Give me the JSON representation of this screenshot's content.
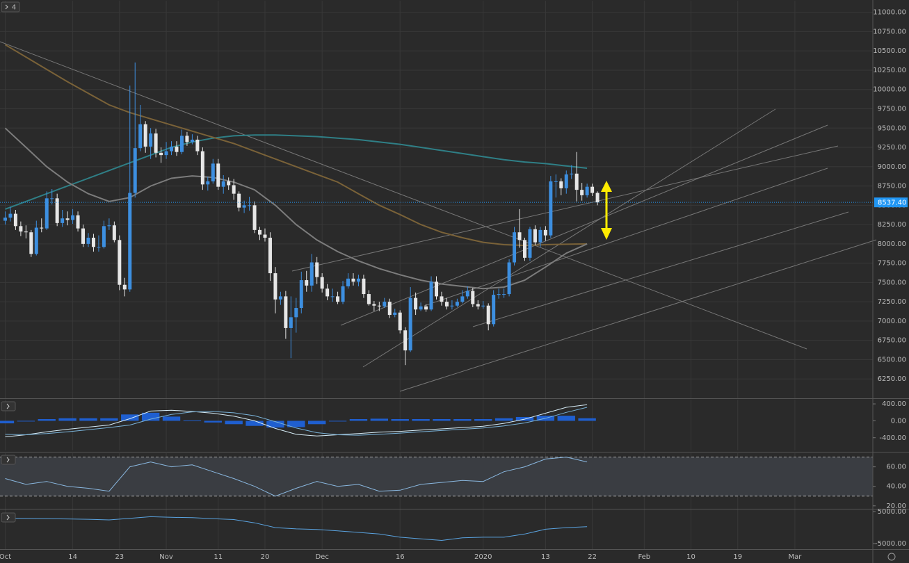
{
  "pane_label": "4",
  "chart_data": [
    {
      "type": "candlestick",
      "x": [
        0,
        1,
        2,
        3,
        4,
        5,
        6,
        7,
        8,
        9,
        10,
        11,
        12,
        13,
        14,
        15,
        16,
        17,
        18,
        19,
        20,
        21,
        22,
        23,
        24,
        25,
        26,
        27,
        28,
        29,
        30,
        31,
        32,
        33,
        34,
        35,
        36,
        37,
        38,
        39,
        40,
        41,
        42,
        43,
        44,
        45,
        46,
        47,
        48,
        49,
        50,
        51,
        52,
        53,
        54,
        55,
        56,
        57,
        58,
        59,
        60,
        61,
        62,
        63,
        64,
        65,
        66,
        67,
        68,
        69,
        70,
        71,
        72,
        73,
        74,
        75,
        76,
        77,
        78,
        79,
        80,
        81,
        82,
        83,
        84,
        85,
        86,
        87,
        88,
        89,
        90,
        91,
        92,
        93,
        94,
        95,
        96,
        97,
        98,
        99,
        100,
        101,
        102,
        103,
        104,
        105,
        106,
        107,
        108,
        109,
        110,
        111,
        112,
        113,
        114
      ],
      "opens": [
        8300,
        8340,
        8390,
        8230,
        8160,
        8150,
        7870,
        8210,
        8200,
        8590,
        8590,
        8270,
        8330,
        8310,
        8370,
        8200,
        8000,
        8080,
        7960,
        7960,
        8230,
        8240,
        8050,
        7470,
        7410,
        8660,
        9240,
        9550,
        9260,
        9430,
        9180,
        9150,
        9200,
        9260,
        9190,
        9400,
        9320,
        9350,
        9200,
        8770,
        8810,
        9040,
        8740,
        8810,
        8760,
        8650,
        8470,
        8500,
        8500,
        8180,
        8120,
        8080,
        7620,
        7280,
        7320,
        6910,
        7050,
        7170,
        7530,
        7460,
        7760,
        7570,
        7420,
        7320,
        7320,
        7250,
        7450,
        7550,
        7510,
        7550,
        7350,
        7220,
        7200,
        7190,
        7250,
        7080,
        7110,
        6880,
        6620,
        7300,
        7150,
        7190,
        7150,
        7510,
        7320,
        7250,
        7190,
        7200,
        7250,
        7320,
        7390,
        7220,
        7190,
        7200,
        6960,
        7340,
        7350,
        7350,
        7760,
        8150,
        8050,
        7820,
        8190,
        8020,
        8180,
        8110,
        8810,
        8810,
        8720,
        8900,
        8910,
        8700,
        8630,
        8740,
        8660
      ],
      "highs": [
        8420,
        8480,
        8440,
        8290,
        8240,
        8180,
        8300,
        8330,
        8680,
        8710,
        8650,
        8440,
        8420,
        8450,
        8420,
        8250,
        8140,
        8130,
        8110,
        8300,
        8330,
        8290,
        8110,
        7560,
        10050,
        10350,
        9800,
        9590,
        9500,
        9490,
        9250,
        9320,
        9330,
        9330,
        9480,
        9450,
        9420,
        9400,
        9250,
        8870,
        9100,
        9100,
        8890,
        8860,
        8840,
        8680,
        8560,
        8610,
        8550,
        8220,
        8200,
        8150,
        7700,
        7380,
        7390,
        7320,
        7300,
        7640,
        7650,
        7870,
        7830,
        7620,
        7480,
        7420,
        7380,
        7520,
        7620,
        7620,
        7600,
        7600,
        7400,
        7260,
        7250,
        7300,
        7290,
        7160,
        7140,
        6920,
        7440,
        7370,
        7240,
        7220,
        7580,
        7580,
        7380,
        7300,
        7270,
        7290,
        7400,
        7450,
        7430,
        7270,
        7260,
        7230,
        7400,
        7420,
        7420,
        7800,
        8220,
        8450,
        8080,
        8220,
        8240,
        8220,
        8230,
        8880,
        8900,
        8850,
        8950,
        9020,
        9190,
        8790,
        8780,
        8780,
        8680
      ],
      "lows": [
        8250,
        8290,
        8180,
        8100,
        8070,
        7830,
        7850,
        8150,
        8180,
        8510,
        8230,
        8220,
        8240,
        8260,
        8160,
        7960,
        7960,
        7900,
        7900,
        7940,
        8180,
        8020,
        7400,
        7320,
        7380,
        8600,
        9200,
        9180,
        9100,
        9120,
        9050,
        9100,
        9150,
        9140,
        9160,
        9270,
        9290,
        9150,
        8700,
        8690,
        8780,
        8700,
        8650,
        8700,
        8570,
        8420,
        8400,
        8430,
        8140,
        8050,
        8030,
        7520,
        7100,
        7210,
        6770,
        6520,
        6850,
        7100,
        7380,
        7380,
        7480,
        7370,
        7270,
        7250,
        7220,
        7220,
        7420,
        7460,
        7450,
        7300,
        7200,
        7130,
        7130,
        7170,
        7040,
        7050,
        6840,
        6430,
        6600,
        7080,
        7130,
        7120,
        7130,
        7280,
        7200,
        7150,
        7150,
        7180,
        7230,
        7290,
        7180,
        7150,
        7160,
        6880,
        6930,
        7290,
        7300,
        7320,
        7720,
        7950,
        7780,
        7780,
        7980,
        7960,
        8040,
        8080,
        8600,
        8630,
        8650,
        8840,
        8550,
        8560,
        8600,
        8620,
        8500
      ],
      "closes": [
        8340,
        8390,
        8230,
        8160,
        8150,
        7870,
        8210,
        8200,
        8590,
        8590,
        8270,
        8330,
        8310,
        8370,
        8200,
        8000,
        8080,
        7960,
        7960,
        8230,
        8240,
        8050,
        7470,
        7410,
        8660,
        9240,
        9550,
        9260,
        9430,
        9180,
        9150,
        9200,
        9260,
        9190,
        9400,
        9320,
        9350,
        9200,
        8770,
        8810,
        9040,
        8740,
        8810,
        8760,
        8650,
        8470,
        8500,
        8500,
        8180,
        8120,
        8080,
        7620,
        7280,
        7320,
        6910,
        7050,
        7170,
        7530,
        7460,
        7760,
        7570,
        7420,
        7320,
        7320,
        7250,
        7450,
        7550,
        7510,
        7550,
        7350,
        7220,
        7200,
        7190,
        7250,
        7080,
        7110,
        6880,
        6620,
        7300,
        7150,
        7190,
        7150,
        7510,
        7320,
        7250,
        7190,
        7200,
        7250,
        7320,
        7390,
        7220,
        7190,
        7200,
        6960,
        7340,
        7350,
        7350,
        7760,
        8150,
        8050,
        7820,
        8190,
        8020,
        8180,
        8110,
        8810,
        8810,
        8720,
        8900,
        8910,
        8700,
        8630,
        8740,
        8660,
        8537.4
      ],
      "up_color": "#3d8fe0",
      "down_color": "#e6e6e6",
      "overlays": {
        "x": [
          0,
          4,
          8,
          12,
          16,
          20,
          24,
          28,
          32,
          36,
          40,
          44,
          48,
          52,
          56,
          60,
          64,
          68,
          72,
          76,
          80,
          84,
          88,
          92,
          96,
          100,
          104,
          108,
          112
        ],
        "series": [
          {
            "color": "#2f7f86",
            "values": [
              8450,
              8550,
              8650,
              8750,
              8850,
              8950,
              9050,
              9150,
              9250,
              9320,
              9370,
              9400,
              9410,
              9410,
              9400,
              9390,
              9370,
              9350,
              9320,
              9290,
              9250,
              9210,
              9170,
              9130,
              9090,
              9060,
              9040,
              9010,
              8980
            ]
          },
          {
            "color": "#7a6238",
            "values": [
              10580,
              10420,
              10260,
              10100,
              9950,
              9800,
              9700,
              9620,
              9540,
              9460,
              9380,
              9300,
              9200,
              9100,
              9000,
              8900,
              8800,
              8650,
              8500,
              8380,
              8250,
              8150,
              8080,
              8020,
              7990,
              7980,
              7990,
              7995,
              8000
            ]
          },
          {
            "color": "#7c7c7c",
            "values": [
              9500,
              9250,
              9000,
              8800,
              8650,
              8550,
              8600,
              8750,
              8850,
              8880,
              8860,
              8800,
              8700,
              8500,
              8250,
              8050,
              7900,
              7780,
              7680,
              7600,
              7530,
              7480,
              7450,
              7420,
              7440,
              7530,
              7700,
              7880,
              8000
            ]
          }
        ]
      },
      "last_price": {
        "value": 8537.4,
        "label": "8537.40"
      },
      "xlim": [
        -1,
        167
      ],
      "xticks": [
        {
          "value": 0,
          "label": "Oct"
        },
        {
          "value": 13,
          "label": "14"
        },
        {
          "value": 22,
          "label": "23"
        },
        {
          "value": 31,
          "label": "Nov"
        },
        {
          "value": 41,
          "label": "11"
        },
        {
          "value": 50,
          "label": "20"
        },
        {
          "value": 61,
          "label": "Dec"
        },
        {
          "value": 76,
          "label": "16"
        },
        {
          "value": 92,
          "label": "2020"
        },
        {
          "value": 104,
          "label": "13"
        },
        {
          "value": 113,
          "label": "22"
        },
        {
          "value": 123,
          "label": "Feb"
        },
        {
          "value": 132,
          "label": "10"
        },
        {
          "value": 141,
          "label": "19"
        },
        {
          "value": 152,
          "label": "Mar"
        }
      ],
      "ylim": [
        6000,
        11150
      ],
      "yticks": [
        {
          "value": 11000,
          "label": "11000.00"
        },
        {
          "value": 10750,
          "label": "10750.00"
        },
        {
          "value": 10500,
          "label": "10500.00"
        },
        {
          "value": 10250,
          "label": "10250.00"
        },
        {
          "value": 10000,
          "label": "10000.00"
        },
        {
          "value": 9750,
          "label": "9750.00"
        },
        {
          "value": 9500,
          "label": "9500.00"
        },
        {
          "value": 9250,
          "label": "9250.00"
        },
        {
          "value": 9000,
          "label": "9000.00"
        },
        {
          "value": 8750,
          "label": "8750.00"
        },
        {
          "value": 8500,
          "label": "8500.00"
        },
        {
          "value": 8250,
          "label": "8250.00"
        },
        {
          "value": 8000,
          "label": "8000.00"
        },
        {
          "value": 7750,
          "label": "7750.00"
        },
        {
          "value": 7500,
          "label": "7500.00"
        },
        {
          "value": 7250,
          "label": "7250.00"
        },
        {
          "value": 7000,
          "label": "7000.00"
        },
        {
          "value": 6750,
          "label": "6750.00"
        },
        {
          "value": 6500,
          "label": "6500.00"
        },
        {
          "value": 6250,
          "label": "6250.00"
        }
      ],
      "grid": true
    },
    {
      "type": "macd",
      "x": [
        0,
        4,
        8,
        12,
        16,
        20,
        24,
        28,
        32,
        36,
        40,
        44,
        48,
        52,
        56,
        60,
        64,
        68,
        72,
        76,
        80,
        84,
        88,
        92,
        96,
        100,
        104,
        108,
        112
      ],
      "series": [
        {
          "color": "#d6ecf7",
          "values": [
            -380,
            -330,
            -260,
            -200,
            -150,
            -100,
            50,
            230,
            250,
            220,
            180,
            110,
            0,
            -180,
            -320,
            -360,
            -330,
            -300,
            -270,
            -250,
            -220,
            -190,
            -160,
            -130,
            -60,
            40,
            180,
            320,
            380
          ]
        },
        {
          "color": "#7ab3d9",
          "values": [
            -320,
            -330,
            -300,
            -260,
            -210,
            -160,
            -100,
            40,
            150,
            210,
            220,
            190,
            120,
            -20,
            -170,
            -280,
            -330,
            -340,
            -320,
            -290,
            -260,
            -230,
            -200,
            -170,
            -120,
            -50,
            60,
            200,
            320
          ]
        }
      ],
      "histogram": {
        "color": "#1f5fd0",
        "values": [
          -60,
          0,
          40,
          60,
          60,
          60,
          150,
          190,
          100,
          10,
          -40,
          -80,
          -120,
          -160,
          -150,
          -80,
          0,
          40,
          50,
          40,
          40,
          40,
          40,
          40,
          60,
          90,
          120,
          120,
          60
        ]
      },
      "ylim": [
        -700,
        500
      ],
      "yticks": [
        {
          "value": 400,
          "label": "400.00"
        },
        {
          "value": 0,
          "label": "0.00"
        },
        {
          "value": -400,
          "label": "-400.00"
        }
      ]
    },
    {
      "type": "line",
      "x": [
        0,
        4,
        8,
        12,
        16,
        20,
        24,
        28,
        32,
        36,
        40,
        44,
        48,
        52,
        56,
        60,
        64,
        68,
        72,
        76,
        80,
        84,
        88,
        92,
        96,
        100,
        104,
        108,
        112
      ],
      "series": [
        {
          "color": "#8ab8e0",
          "values": [
            48,
            42,
            45,
            40,
            38,
            35,
            60,
            65,
            60,
            62,
            55,
            48,
            40,
            30,
            38,
            45,
            40,
            42,
            35,
            36,
            42,
            44,
            46,
            45,
            55,
            60,
            68,
            70,
            65
          ]
        }
      ],
      "bands": [
        30,
        70
      ],
      "ylim": [
        17,
        74
      ],
      "yticks": [
        {
          "value": 60,
          "label": "60.00"
        },
        {
          "value": 40,
          "label": "40.00"
        },
        {
          "value": 20,
          "label": "20.00"
        }
      ]
    },
    {
      "type": "line",
      "x": [
        0,
        4,
        8,
        12,
        16,
        20,
        24,
        28,
        32,
        36,
        40,
        44,
        48,
        52,
        56,
        60,
        64,
        68,
        72,
        76,
        80,
        84,
        88,
        92,
        96,
        100,
        104,
        108,
        112
      ],
      "series": [
        {
          "color": "#5aa3e0",
          "values": [
            3000,
            2900,
            2800,
            2700,
            2600,
            2400,
            2900,
            3400,
            3200,
            3100,
            2800,
            2500,
            1500,
            0,
            -400,
            -600,
            -1000,
            -1500,
            -2000,
            -3000,
            -3500,
            -4000,
            -3200,
            -3000,
            -3000,
            -2000,
            -500,
            0,
            300
          ]
        }
      ],
      "ylim": [
        -6700,
        5650
      ],
      "yticks": [
        {
          "value": 5000,
          "label": "5000.00"
        },
        {
          "value": -5000,
          "label": "-5000.00"
        }
      ]
    }
  ]
}
